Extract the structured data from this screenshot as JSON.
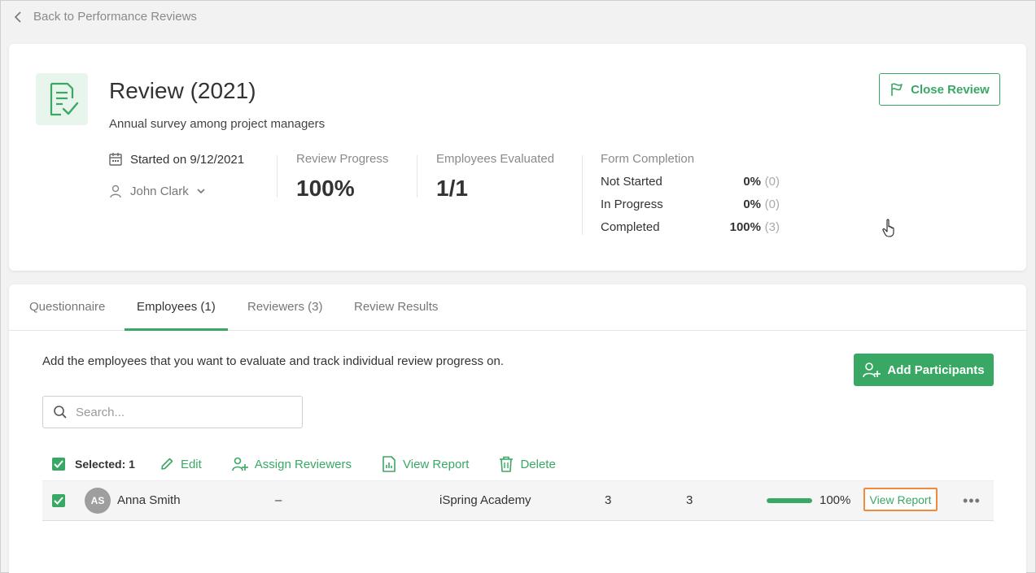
{
  "colors": {
    "accent": "#3aa865",
    "highlight": "#f08a3c"
  },
  "nav": {
    "back_label": "Back to Performance Reviews",
    "back_icon": "chevron-left-icon"
  },
  "review": {
    "title": "Review (2021)",
    "subtitle": "Annual survey among project managers",
    "close_label": "Close Review",
    "started": "Started on 9/12/2021",
    "owner": "John Clark",
    "progress_label": "Review Progress",
    "progress_value": "100%",
    "evaluated_label": "Employees Evaluated",
    "evaluated_value": "1/1",
    "form_completion": {
      "label": "Form Completion",
      "rows": [
        {
          "label": "Not Started",
          "pct": "0%",
          "count": "(0)"
        },
        {
          "label": "In Progress",
          "pct": "0%",
          "count": "(0)"
        },
        {
          "label": "Completed",
          "pct": "100%",
          "count": "(3)"
        }
      ]
    }
  },
  "tabs": [
    {
      "label": "Questionnaire"
    },
    {
      "label": "Employees (1)",
      "active": true
    },
    {
      "label": "Reviewers (3)"
    },
    {
      "label": "Review Results"
    }
  ],
  "employees": {
    "description": "Add the employees that you want to evaluate and track individual review progress on.",
    "add_label": "Add Participants",
    "search_placeholder": "Search...",
    "selected_label": "Selected: 1",
    "actions": {
      "edit": "Edit",
      "assign": "Assign Reviewers",
      "view_report": "View Report",
      "delete": "Delete"
    },
    "rows": [
      {
        "initials": "AS",
        "name": "Anna Smith",
        "position": "–",
        "department": "iSpring Academy",
        "col_a": "3",
        "col_b": "3",
        "progress": 1.0,
        "progress_label": "100%",
        "view_report": "View Report",
        "more": "•••"
      }
    ]
  }
}
